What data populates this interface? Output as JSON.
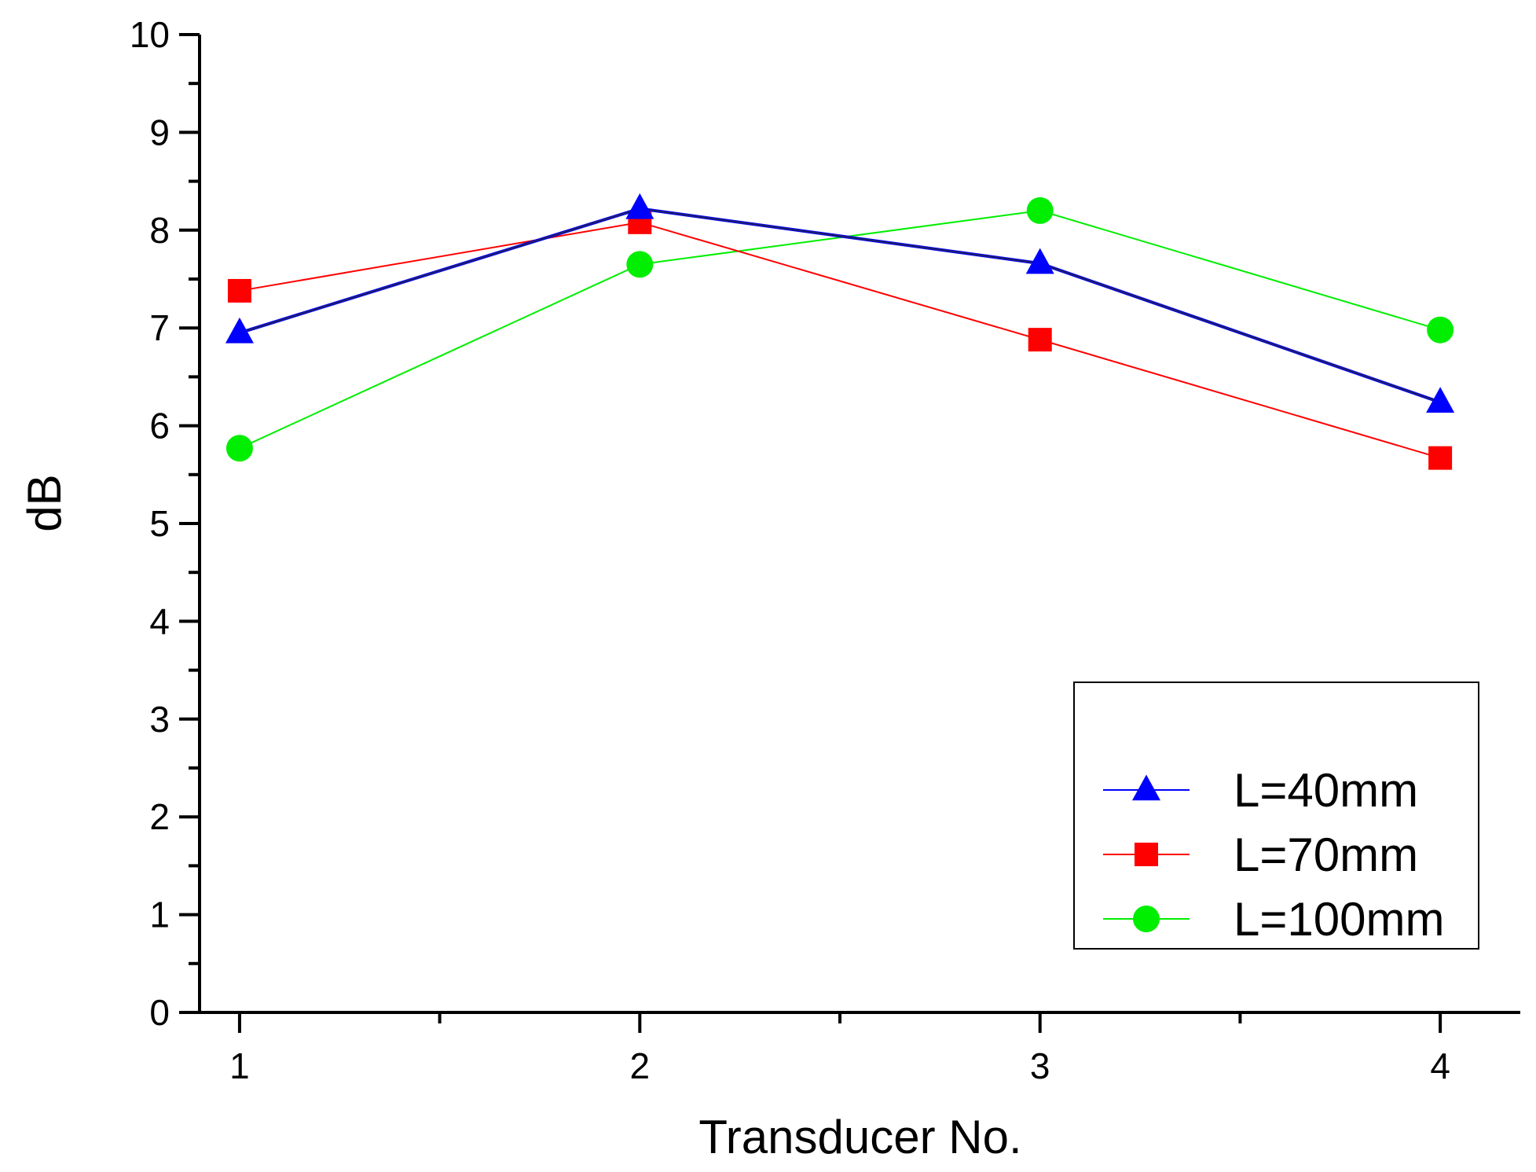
{
  "chart_data": {
    "type": "line",
    "title": "",
    "xlabel": "Transducer No.",
    "ylabel": "dB",
    "x": [
      1,
      2,
      3,
      4
    ],
    "xlim": [
      0.9,
      4.2
    ],
    "ylim": [
      0,
      10
    ],
    "x_ticks": [
      1,
      2,
      3,
      4
    ],
    "x_minor_ticks": [
      1.5,
      2.5,
      3.5
    ],
    "y_ticks": [
      0,
      1,
      2,
      3,
      4,
      5,
      6,
      7,
      8,
      9,
      10
    ],
    "grid": false,
    "legend_position": "bottom-right",
    "series": [
      {
        "name": "L=40mm",
        "values": [
          6.95,
          8.22,
          7.66,
          6.24
        ],
        "color": "#0000ff",
        "marker": "triangle"
      },
      {
        "name": "L=70mm",
        "values": [
          7.38,
          8.08,
          6.88,
          5.67
        ],
        "color": "#ff0000",
        "marker": "square"
      },
      {
        "name": "L=100mm",
        "values": [
          5.77,
          7.65,
          8.2,
          6.98
        ],
        "color": "#00ee00",
        "marker": "circle"
      }
    ]
  }
}
